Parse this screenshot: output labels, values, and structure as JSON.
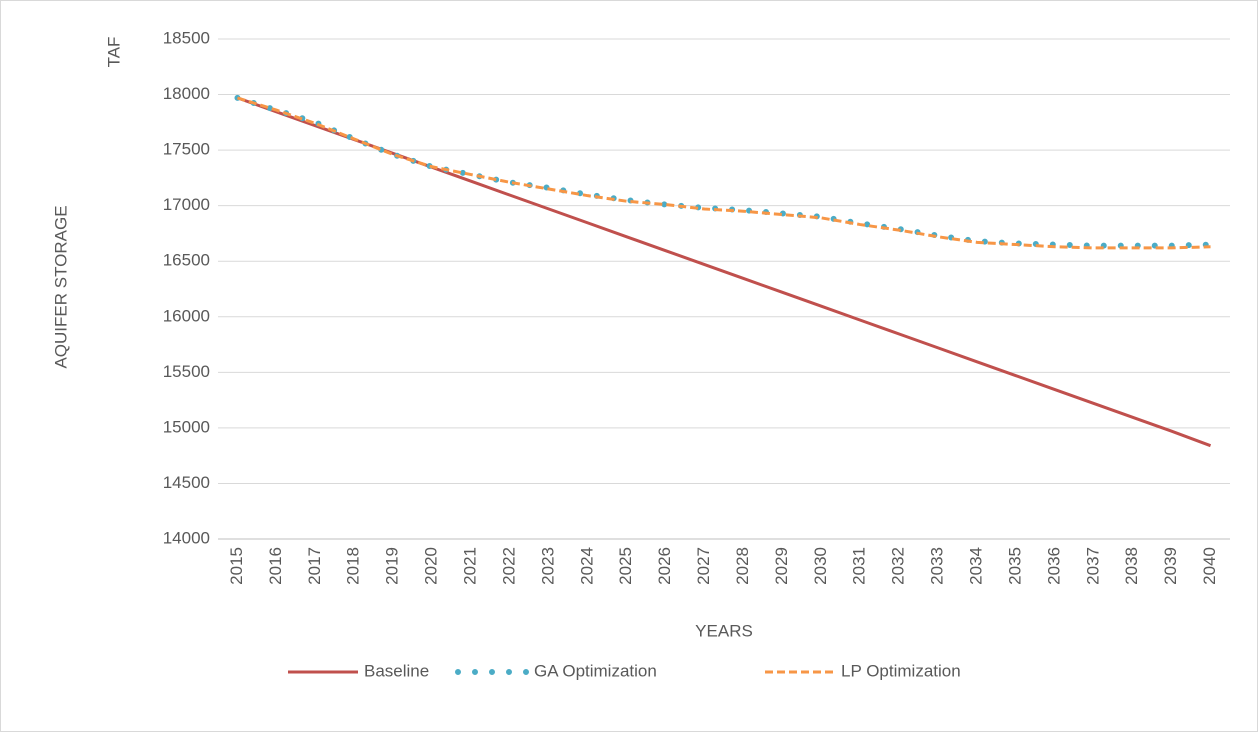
{
  "chart_data": {
    "type": "line",
    "y_label_unit": "TAF",
    "y_label": "AQUIFER STORAGE",
    "x_label": "YEARS",
    "categories": [
      "2015",
      "2016",
      "2017",
      "2018",
      "2019",
      "2020",
      "2021",
      "2022",
      "2023",
      "2024",
      "2025",
      "2026",
      "2027",
      "2028",
      "2029",
      "2030",
      "2031",
      "2032",
      "2033",
      "2034",
      "2035",
      "2036",
      "2037",
      "2038",
      "2039",
      "2040"
    ],
    "series": [
      {
        "name": "Baseline",
        "color": "#c0504d",
        "style": "solid",
        "values": [
          17970,
          17845,
          17720,
          17595,
          17470,
          17345,
          17220,
          17095,
          16970,
          16845,
          16720,
          16595,
          16470,
          16345,
          16220,
          16095,
          15970,
          15845,
          15720,
          15595,
          15470,
          15345,
          15220,
          15095,
          14970,
          14840
        ]
      },
      {
        "name": "GA Optimization",
        "color": "#4bacc6",
        "style": "dotted",
        "values": [
          17970,
          17860,
          17750,
          17600,
          17460,
          17350,
          17280,
          17210,
          17160,
          17100,
          17050,
          17010,
          16980,
          16960,
          16930,
          16900,
          16840,
          16790,
          16730,
          16680,
          16660,
          16650,
          16640,
          16640,
          16640,
          16650
        ]
      },
      {
        "name": "LP Optimization",
        "color": "#f79646",
        "style": "dashed",
        "values": [
          17970,
          17860,
          17740,
          17600,
          17460,
          17350,
          17280,
          17210,
          17150,
          17090,
          17040,
          17010,
          16970,
          16950,
          16920,
          16890,
          16830,
          16780,
          16720,
          16670,
          16650,
          16630,
          16620,
          16620,
          16620,
          16630
        ]
      }
    ],
    "ylim": [
      14000,
      18500
    ],
    "yticks": [
      14000,
      14500,
      15000,
      15500,
      16000,
      16500,
      17000,
      17500,
      18000,
      18500
    ],
    "grid": true,
    "legend": "bottom"
  }
}
